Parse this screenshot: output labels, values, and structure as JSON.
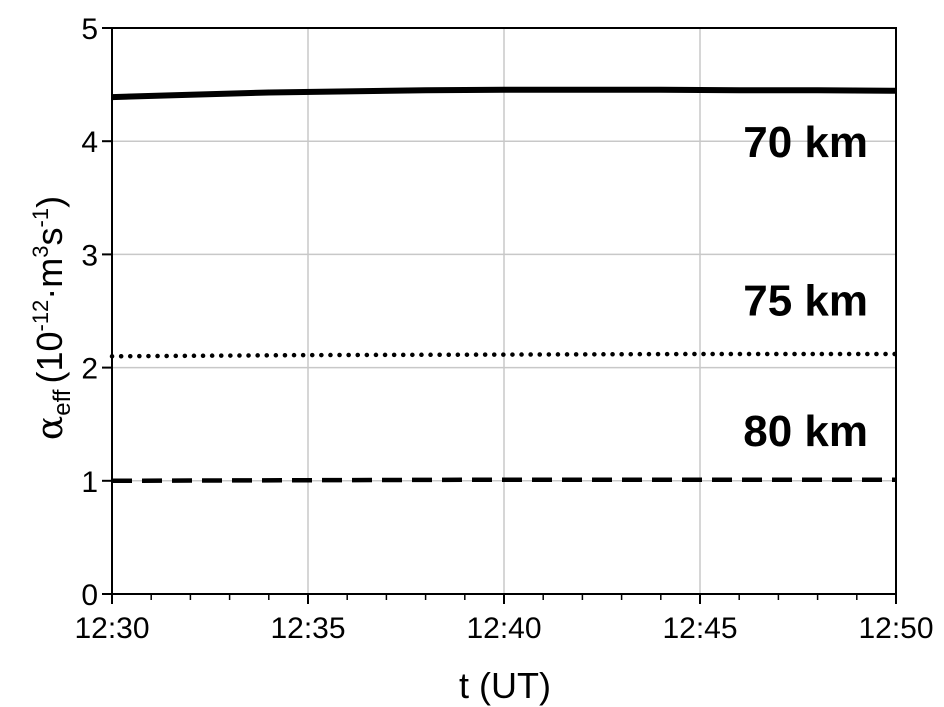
{
  "chart_data": {
    "type": "line",
    "title": "",
    "xlabel": "t (UT)",
    "ylabel": {
      "symbol": "α",
      "subscript": "eff",
      "open": "(10",
      "exp1": "-12",
      "mid": "·m",
      "exp2": "3",
      "s": "s",
      "exp3": "-1",
      "close": ")"
    },
    "x_ticks": [
      "12:30",
      "12:35",
      "12:40",
      "12:45",
      "12:50"
    ],
    "x_minutes": [
      0,
      5,
      10,
      15,
      20
    ],
    "xlim": [
      0,
      20
    ],
    "ylim": [
      0,
      5
    ],
    "y_ticks": [
      0,
      1,
      2,
      3,
      4,
      5
    ],
    "grid": true,
    "series": [
      {
        "name": "70 km",
        "style": "solid",
        "x": [
          0,
          2,
          4,
          6,
          8,
          10,
          12,
          14,
          16,
          18,
          20
        ],
        "y": [
          4.39,
          4.41,
          4.43,
          4.44,
          4.45,
          4.455,
          4.455,
          4.455,
          4.45,
          4.45,
          4.445
        ]
      },
      {
        "name": "75 km",
        "style": "dotted",
        "x": [
          0,
          5,
          10,
          15,
          20
        ],
        "y": [
          2.1,
          2.11,
          2.115,
          2.12,
          2.12
        ]
      },
      {
        "name": "80 km",
        "style": "dashed",
        "x": [
          0,
          5,
          10,
          15,
          20
        ],
        "y": [
          1.0,
          1.005,
          1.01,
          1.01,
          1.01
        ]
      }
    ],
    "series_label_y": [
      4.0,
      2.6,
      1.45
    ]
  }
}
